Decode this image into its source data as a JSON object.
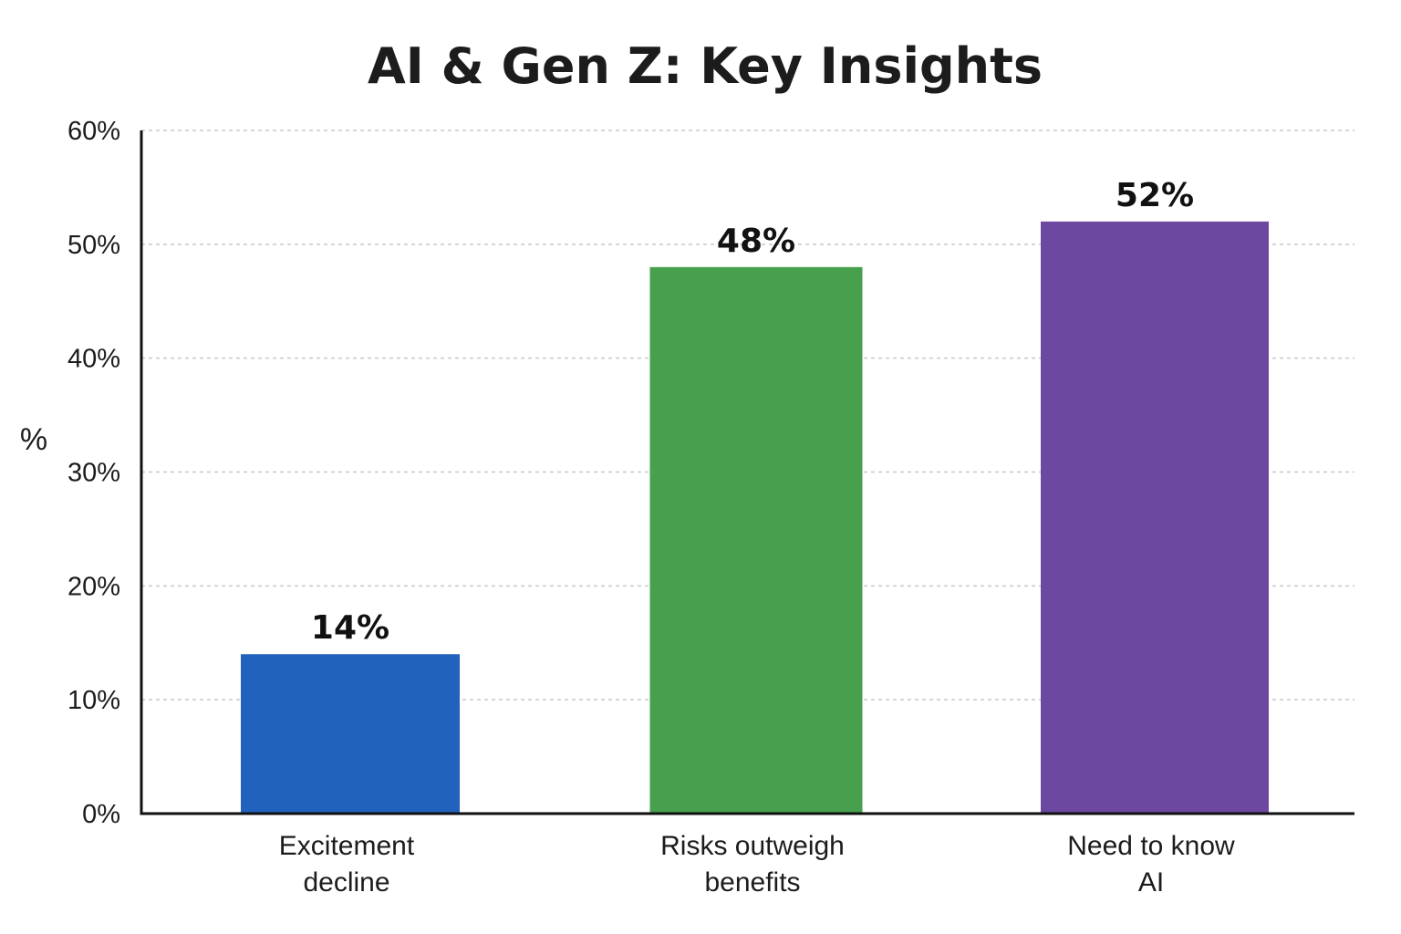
{
  "chart_data": {
    "type": "bar",
    "title": "AI & Gen Z: Key Insights",
    "xlabel": "",
    "ylabel": "%",
    "ylim": [
      0,
      60
    ],
    "yticks": [
      0,
      10,
      20,
      30,
      40,
      50,
      60
    ],
    "ytick_labels": [
      "0%",
      "10%",
      "20%",
      "30%",
      "40%",
      "50%",
      "60%"
    ],
    "grid": true,
    "categories": [
      [
        "Excitement",
        "decline"
      ],
      [
        "Risks outweigh",
        "benefits"
      ],
      [
        "Need to know",
        "AI"
      ]
    ],
    "values": [
      14,
      48,
      52
    ],
    "data_labels": [
      "14%",
      "48%",
      "52%"
    ],
    "colors": [
      "#2162bd",
      "#47a04e",
      "#6c48a0"
    ]
  }
}
